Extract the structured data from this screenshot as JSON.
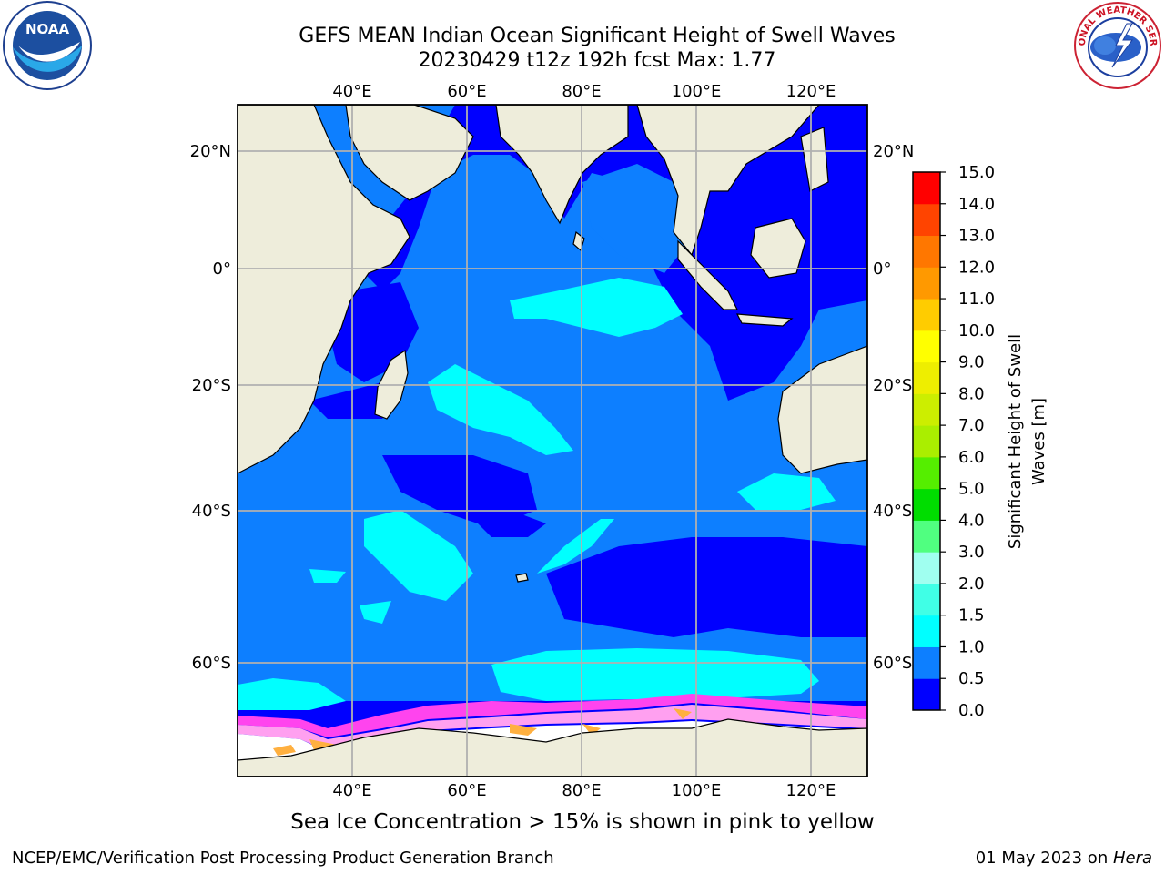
{
  "header": {
    "title_line1": "GEFS MEAN Indian Ocean Significant Height of Swell Waves",
    "title_line2": "20230429 t12z 192h fcst   Max: 1.77"
  },
  "logos": {
    "left": {
      "icon": "noaa-logo",
      "text": "NOAA"
    },
    "right": {
      "icon": "national-weather-service-logo",
      "text": "NATIONAL WEATHER SERVICE"
    }
  },
  "map": {
    "region": "Indian Ocean",
    "lon_range": [
      20,
      130
    ],
    "lat_range": [
      -72,
      28
    ],
    "lon_ticks": [
      {
        "value": 40,
        "label": "40°E"
      },
      {
        "value": 60,
        "label": "60°E"
      },
      {
        "value": 80,
        "label": "80°E"
      },
      {
        "value": 100,
        "label": "100°E"
      },
      {
        "value": 120,
        "label": "120°E"
      }
    ],
    "lat_ticks": [
      {
        "value": 20,
        "label": "20°N"
      },
      {
        "value": 0,
        "label": "0°"
      },
      {
        "value": -20,
        "label": "20°S"
      },
      {
        "value": -40,
        "label": "40°S"
      },
      {
        "value": -60,
        "label": "60°S"
      }
    ],
    "grid": true,
    "land_color": "#eeeddb",
    "sea_ice_colors": [
      "#ff44ee",
      "#ffa0f0",
      "#ffb040",
      "#ffffff"
    ]
  },
  "colorbar": {
    "label_line1": "Significant Height of Swell",
    "label_line2": "Waves [m]",
    "levels": [
      "0.0",
      "0.5",
      "1.0",
      "1.5",
      "2.0",
      "3.0",
      "4.0",
      "5.0",
      "6.0",
      "7.0",
      "8.0",
      "9.0",
      "10.0",
      "11.0",
      "12.0",
      "13.0",
      "14.0",
      "15.0"
    ],
    "colors": [
      "#0000ff",
      "#0d7fff",
      "#00ffff",
      "#40ffe6",
      "#a0fff0",
      "#50ff80",
      "#00dd00",
      "#55ee00",
      "#aaee00",
      "#ccee00",
      "#eeee00",
      "#ffff00",
      "#ffcc00",
      "#ff9900",
      "#ff7700",
      "#ff4400",
      "#ff0000"
    ]
  },
  "footer": {
    "sea_ice_note": "Sea Ice Concentration > 15% is shown in pink to yellow",
    "credit": "NCEP/EMC/Verification Post Processing Product Generation Branch",
    "date_prefix": "01 May 2023 on ",
    "date_machine": "Hera"
  }
}
